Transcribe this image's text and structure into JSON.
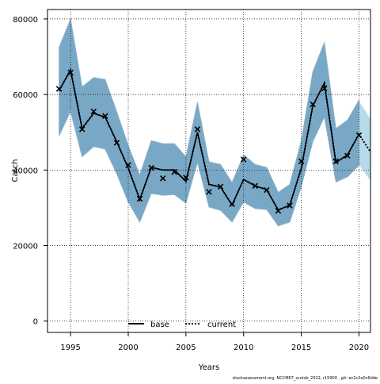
{
  "chart_data": {
    "type": "line",
    "xlabel": "Years",
    "ylabel": "Catch",
    "xlim": [
      1993,
      2021
    ],
    "ylim": [
      -3000,
      82500
    ],
    "xticks": [
      1995,
      2000,
      2005,
      2010,
      2015,
      2020
    ],
    "yticks": [
      0,
      20000,
      40000,
      60000,
      80000
    ],
    "grid": true,
    "legend_position": "bottom-center",
    "footnote": "stockassessment.org, NCCM67_scotsb_2022, r15900 , git: ec2c2a0c6dde",
    "colors": {
      "band_fill": "#6f9fbf",
      "band_light": "#a9d4e8",
      "band_edge": "#8aaec6",
      "line": "#000000",
      "grid": "#000000"
    },
    "legend": [
      {
        "label": "base",
        "style": "solid"
      },
      {
        "label": "current",
        "style": "dotted"
      }
    ],
    "observed": {
      "marker": "x",
      "x": [
        1994,
        1995,
        1996,
        1997,
        1998,
        1999,
        2000,
        2001,
        2002,
        2003,
        2004,
        2005,
        2006,
        2007,
        2008,
        2009,
        2010,
        2011,
        2012,
        2013,
        2014,
        2015,
        2016,
        2017,
        2018,
        2019,
        2020
      ],
      "y": [
        61500,
        65800,
        50800,
        55500,
        54300,
        47200,
        41300,
        32400,
        40600,
        37800,
        39500,
        38000,
        50800,
        34200,
        35600,
        31000,
        42800,
        35800,
        34700,
        29200,
        30600,
        42300,
        57400,
        61600,
        42300,
        43800,
        49200
      ]
    },
    "series": [
      {
        "name": "base",
        "x": [
          1994,
          1995,
          1996,
          1997,
          1998,
          1999,
          2000,
          2001,
          2002,
          2003,
          2004,
          2005,
          2006,
          2007,
          2008,
          2009,
          2010,
          2011,
          2012,
          2013,
          2014,
          2015,
          2016,
          2017,
          2018,
          2019,
          2020
        ],
        "y": [
          61000,
          66500,
          51000,
          55000,
          54000,
          47500,
          40500,
          32200,
          40700,
          40000,
          40000,
          37000,
          50000,
          36200,
          35500,
          30700,
          37500,
          35800,
          34800,
          29400,
          30700,
          40500,
          57000,
          63000,
          42000,
          44000,
          49500
        ],
        "lower": [
          49000,
          55500,
          43500,
          46200,
          45500,
          39000,
          31500,
          26200,
          33800,
          33300,
          33500,
          31200,
          42000,
          30200,
          29300,
          26200,
          31500,
          29800,
          29500,
          25200,
          26200,
          35500,
          47500,
          54000,
          36800,
          38200,
          41200
        ],
        "upper": [
          72500,
          80000,
          62000,
          64500,
          64000,
          55500,
          46500,
          38700,
          47800,
          47000,
          47000,
          43500,
          58000,
          42200,
          41500,
          36700,
          44000,
          41500,
          40700,
          34100,
          36200,
          47800,
          66000,
          73800,
          51000,
          53200,
          58500
        ]
      },
      {
        "name": "current",
        "x": [
          1994,
          1995,
          1996,
          1997,
          1998,
          1999,
          2000,
          2001,
          2002,
          2003,
          2004,
          2005,
          2006,
          2007,
          2008,
          2009,
          2010,
          2011,
          2012,
          2013,
          2014,
          2015,
          2016,
          2017,
          2018,
          2019,
          2020,
          2021
        ],
        "y": [
          61000,
          66500,
          51000,
          55000,
          54000,
          47500,
          40500,
          32200,
          40700,
          40000,
          40000,
          37000,
          50000,
          36200,
          35500,
          30700,
          37500,
          35800,
          34800,
          29400,
          30700,
          40500,
          57000,
          63000,
          42000,
          44000,
          49500,
          44800
        ],
        "lower": [
          49500,
          56000,
          43800,
          46500,
          45800,
          39200,
          31800,
          26400,
          33900,
          33500,
          33700,
          31400,
          42200,
          30400,
          29500,
          26400,
          31700,
          30000,
          29700,
          25400,
          26400,
          35800,
          47800,
          54300,
          37000,
          38400,
          41400,
          37200
        ],
        "upper": [
          72300,
          79800,
          61800,
          64300,
          63800,
          55300,
          46300,
          38500,
          47600,
          46800,
          46800,
          43300,
          57800,
          42000,
          41300,
          36500,
          43800,
          41300,
          40500,
          33900,
          36000,
          47600,
          65800,
          73600,
          50800,
          53000,
          58300,
          53500
        ]
      }
    ]
  }
}
